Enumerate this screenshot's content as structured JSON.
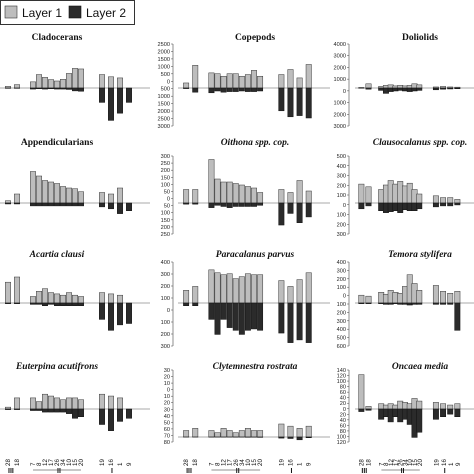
{
  "legend": {
    "items": [
      {
        "label": "Layer 1",
        "color": "#bdbdbd"
      },
      {
        "label": "Layer 2",
        "color": "#2b2b2b"
      }
    ]
  },
  "axis_labels": {
    "categories": [
      "28",
      "18",
      "4",
      "7",
      "8",
      "12",
      "17",
      "26",
      "34",
      "10",
      "15",
      "20",
      "19",
      "16",
      "1",
      "9"
    ],
    "groups": [
      "III",
      "II",
      "I"
    ],
    "patterns": [
      "Pattern I",
      "Pattern II"
    ]
  },
  "chart_data": [
    {
      "title": "Cladocerans",
      "italic": false,
      "column": 0,
      "row": 0,
      "type": "bar",
      "ticks": [],
      "ylim": [
        -1000,
        1500
      ],
      "series": [
        {
          "name": "Layer 1",
          "values": [
            60,
            120,
            0,
            220,
            480,
            380,
            300,
            250,
            310,
            520,
            700,
            680,
            480,
            400,
            360,
            0
          ]
        },
        {
          "name": "Layer 2",
          "values": [
            -10,
            -10,
            0,
            -30,
            -20,
            -30,
            -20,
            -30,
            -30,
            -40,
            -80,
            -90,
            -400,
            -900,
            -700,
            -400
          ]
        }
      ]
    },
    {
      "title": "Copepods",
      "italic": false,
      "column": 1,
      "row": 0,
      "type": "bar",
      "ticks": [
        "2500",
        "2000",
        "1500",
        "1000",
        "500",
        "0",
        "500",
        "1000",
        "1500",
        "2000",
        "2500",
        "3000"
      ],
      "ylim": [
        -3000,
        2500
      ],
      "series": [
        {
          "name": "Layer 1",
          "values": [
            300,
            1350,
            0,
            900,
            850,
            700,
            850,
            850,
            700,
            800,
            1050,
            700,
            800,
            1100,
            600,
            1400
          ]
        },
        {
          "name": "Layer 2",
          "values": [
            -50,
            -350,
            0,
            -400,
            -250,
            -350,
            -300,
            -300,
            -250,
            -300,
            -300,
            -250,
            -1900,
            -2400,
            -2300,
            -2500
          ]
        }
      ]
    },
    {
      "title": "Doliolids",
      "italic": false,
      "column": 2,
      "row": 0,
      "type": "bar",
      "ticks": [
        "4000",
        "3000",
        "2000",
        "1000",
        "0",
        "1000",
        "2000",
        "3000"
      ],
      "ylim": [
        -3000,
        4000
      ],
      "series": [
        {
          "name": "Layer 1",
          "values": [
            50,
            400,
            0,
            150,
            250,
            300,
            200,
            250,
            200,
            250,
            400,
            300,
            100,
            150,
            100,
            80
          ]
        },
        {
          "name": "Layer 2",
          "values": [
            -20,
            -100,
            0,
            -200,
            -450,
            -300,
            -250,
            -200,
            -250,
            -300,
            -250,
            -200,
            -150,
            -100,
            -80,
            -60
          ]
        }
      ]
    },
    {
      "title": "Appendicularians",
      "italic": false,
      "column": 0,
      "row": 1,
      "type": "bar",
      "ticks": [],
      "ylim": [
        -300,
        600
      ],
      "series": [
        {
          "name": "Layer 1",
          "values": [
            30,
            120,
            0,
            420,
            360,
            300,
            280,
            260,
            220,
            200,
            190,
            150,
            140,
            120,
            200,
            0
          ]
        },
        {
          "name": "Layer 2",
          "values": [
            -10,
            -10,
            0,
            -30,
            -30,
            -30,
            -30,
            -30,
            -30,
            -30,
            -30,
            -30,
            -40,
            -60,
            -110,
            -80
          ]
        }
      ]
    },
    {
      "title": "Oithona spp. cop.",
      "italic": true,
      "column": 1,
      "row": 1,
      "type": "bar",
      "ticks": [
        "300",
        "250",
        "200",
        "150",
        "100",
        "50",
        "0",
        "50",
        "100",
        "150",
        "200",
        "250"
      ],
      "ylim": [
        -250,
        300
      ],
      "series": [
        {
          "name": "Layer 1",
          "values": [
            90,
            90,
            0,
            290,
            160,
            140,
            140,
            130,
            120,
            110,
            100,
            70,
            90,
            70,
            150,
            80
          ]
        },
        {
          "name": "Layer 2",
          "values": [
            -10,
            -10,
            0,
            -40,
            -20,
            -30,
            -40,
            -30,
            -30,
            -30,
            -30,
            -20,
            -190,
            -90,
            -170,
            -120
          ]
        }
      ]
    },
    {
      "title": "Clausocalanus spp. cop.",
      "italic": true,
      "column": 2,
      "row": 1,
      "type": "bar",
      "ticks": [
        "500",
        "400",
        "300",
        "200",
        "100",
        "0",
        "100",
        "200",
        "300"
      ],
      "ylim": [
        -300,
        500
      ],
      "series": [
        {
          "name": "Layer 1",
          "values": [
            210,
            180,
            0,
            150,
            200,
            250,
            210,
            240,
            190,
            220,
            150,
            100,
            80,
            60,
            60,
            40
          ]
        },
        {
          "name": "Layer 2",
          "values": [
            -60,
            -30,
            0,
            -80,
            -100,
            -90,
            -80,
            -100,
            -70,
            -80,
            -80,
            -60,
            -40,
            -30,
            -30,
            -20
          ]
        }
      ]
    },
    {
      "title": "Acartia clausi",
      "italic": true,
      "column": 0,
      "row": 2,
      "type": "bar",
      "ticks": [],
      "ylim": [
        -300,
        300
      ],
      "series": [
        {
          "name": "Layer 1",
          "values": [
            160,
            200,
            0,
            50,
            90,
            110,
            80,
            70,
            60,
            80,
            60,
            50,
            80,
            70,
            60,
            0
          ]
        },
        {
          "name": "Layer 2",
          "values": [
            -5,
            -5,
            0,
            -10,
            -10,
            -20,
            -10,
            -20,
            -20,
            -20,
            -20,
            -20,
            -120,
            -200,
            -160,
            -150
          ]
        }
      ]
    },
    {
      "title": "Paracalanus parvus",
      "italic": true,
      "column": 1,
      "row": 2,
      "type": "bar",
      "ticks": [
        "400",
        "300",
        "200",
        "100",
        "0",
        "100",
        "200",
        "300"
      ],
      "ylim": [
        -300,
        400
      ],
      "series": [
        {
          "name": "Layer 1",
          "values": [
            130,
            170,
            0,
            340,
            310,
            290,
            300,
            250,
            270,
            300,
            290,
            290,
            230,
            170,
            240,
            310
          ]
        },
        {
          "name": "Layer 2",
          "values": [
            -20,
            -20,
            0,
            -120,
            -230,
            -120,
            -180,
            -200,
            -230,
            -200,
            -190,
            -200,
            -220,
            -290,
            -270,
            -290
          ]
        }
      ]
    },
    {
      "title": "Temora stylifera",
      "italic": true,
      "column": 2,
      "row": 2,
      "type": "bar",
      "ticks": [
        "400",
        "300",
        "200",
        "100",
        "0",
        "100",
        "200",
        "300",
        "400",
        "500",
        "600"
      ],
      "ylim": [
        -600,
        400
      ],
      "series": [
        {
          "name": "Layer 1",
          "values": [
            80,
            70,
            0,
            110,
            90,
            130,
            110,
            100,
            170,
            290,
            200,
            130,
            180,
            120,
            100,
            120
          ]
        },
        {
          "name": "Layer 2",
          "values": [
            -10,
            -10,
            0,
            -10,
            -20,
            -20,
            -10,
            -20,
            -20,
            -30,
            -20,
            -20,
            -20,
            -20,
            -20,
            -400
          ]
        }
      ]
    },
    {
      "title": "Euterpina acutifrons",
      "italic": true,
      "column": 0,
      "row": 3,
      "type": "bar",
      "ticks": [],
      "ylim": [
        -100,
        100
      ],
      "series": [
        {
          "name": "Layer 1",
          "values": [
            5,
            30,
            0,
            30,
            20,
            40,
            35,
            30,
            25,
            30,
            30,
            25,
            40,
            35,
            30,
            0
          ]
        },
        {
          "name": "Layer 2",
          "values": [
            -2,
            -2,
            0,
            -5,
            -5,
            -10,
            -10,
            -10,
            -10,
            -15,
            -30,
            -25,
            -50,
            -70,
            -40,
            -30
          ]
        }
      ]
    },
    {
      "title": "Clytemnestra rostrata",
      "italic": true,
      "column": 1,
      "row": 3,
      "type": "bar",
      "ticks": [
        "30",
        "20",
        "10",
        "0",
        "10",
        "20",
        "30",
        "40",
        "50",
        "60",
        "70",
        "80"
      ],
      "ylim": [
        -80,
        30
      ],
      "series": [
        {
          "name": "Layer 1",
          "values": [
            3,
            4,
            0,
            3,
            2,
            4,
            3,
            2,
            3,
            4,
            3,
            3,
            6,
            5,
            4,
            5
          ]
        },
        {
          "name": "Layer 2",
          "values": [
            -1,
            -1,
            0,
            -3,
            -2,
            -3,
            -2,
            -4,
            -3,
            -8,
            -6,
            -10,
            -30,
            -40,
            -75,
            -20
          ]
        }
      ]
    },
    {
      "title": "Oncaea media",
      "italic": true,
      "column": 2,
      "row": 3,
      "type": "bar",
      "ticks": [
        "140",
        "120",
        "100",
        "80",
        "60",
        "40",
        "20",
        "0",
        "20",
        "40",
        "60",
        "80",
        "100",
        "120"
      ],
      "ylim": [
        -120,
        140
      ],
      "series": [
        {
          "name": "Layer 1",
          "values": [
            130,
            10,
            0,
            20,
            15,
            20,
            15,
            30,
            25,
            20,
            40,
            30,
            25,
            20,
            15,
            20
          ]
        },
        {
          "name": "Layer 2",
          "values": [
            -10,
            -5,
            0,
            -40,
            -30,
            -50,
            -30,
            -50,
            -40,
            -60,
            -110,
            -90,
            -40,
            -30,
            -20,
            -30
          ]
        }
      ]
    }
  ]
}
